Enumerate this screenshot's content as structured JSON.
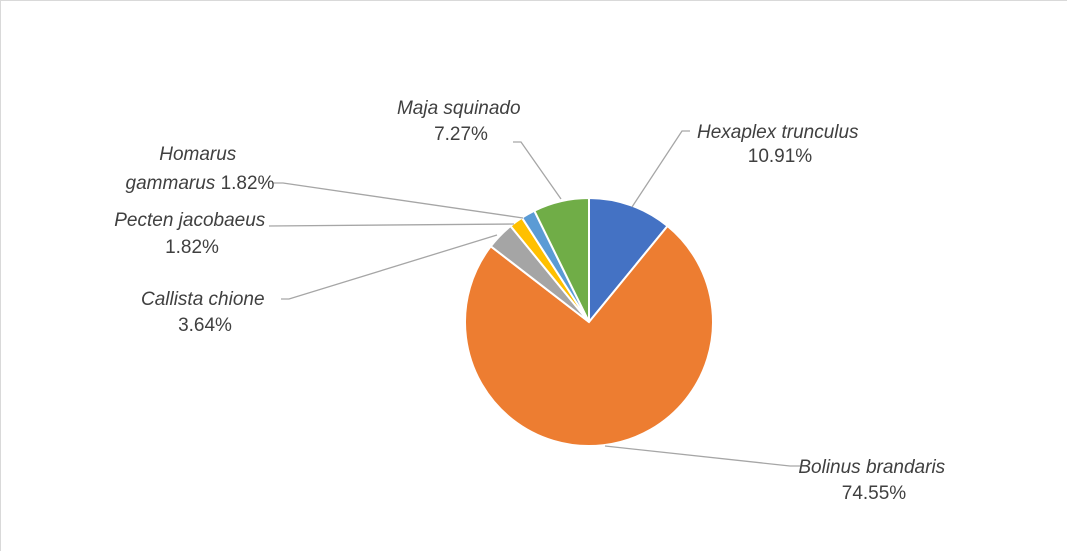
{
  "chart_data": {
    "type": "pie",
    "title": "",
    "start_angle_deg": 0,
    "direction": "clockwise",
    "slices": [
      {
        "name": "Hexaplex trunculus",
        "value": 10.91,
        "label": "10.91%",
        "color": "#4472C4"
      },
      {
        "name": "Bolinus brandaris",
        "value": 74.55,
        "label": "74.55%",
        "color": "#ED7D31"
      },
      {
        "name": "Callista chione",
        "value": 3.64,
        "label": "3.64%",
        "color": "#A5A5A5"
      },
      {
        "name": "Pecten jacobaeus",
        "value": 1.82,
        "label": "1.82%",
        "color": "#FFC000"
      },
      {
        "name": "Homarus gammarus",
        "value": 1.82,
        "label": "1.82%",
        "color": "#5B9BD5"
      },
      {
        "name": "Maja squinado",
        "value": 7.27,
        "label": "7.27%",
        "color": "#70AD47"
      }
    ],
    "label_lines": [
      {
        "slice": 0,
        "lines": [
          "Hexaplex trunculus",
          "10.91%"
        ]
      },
      {
        "slice": 1,
        "lines": [
          "Bolinus brandaris",
          "74.55%"
        ]
      },
      {
        "slice": 2,
        "lines": [
          "Callista chione",
          "3.64%"
        ]
      },
      {
        "slice": 3,
        "lines": [
          "Pecten jacobaeus",
          "1.82%"
        ]
      },
      {
        "slice": 4,
        "lines": [
          "Homarus",
          "gammarus 1.82%"
        ]
      },
      {
        "slice": 5,
        "lines": [
          "Maja squinado",
          "7.27%"
        ]
      }
    ]
  }
}
